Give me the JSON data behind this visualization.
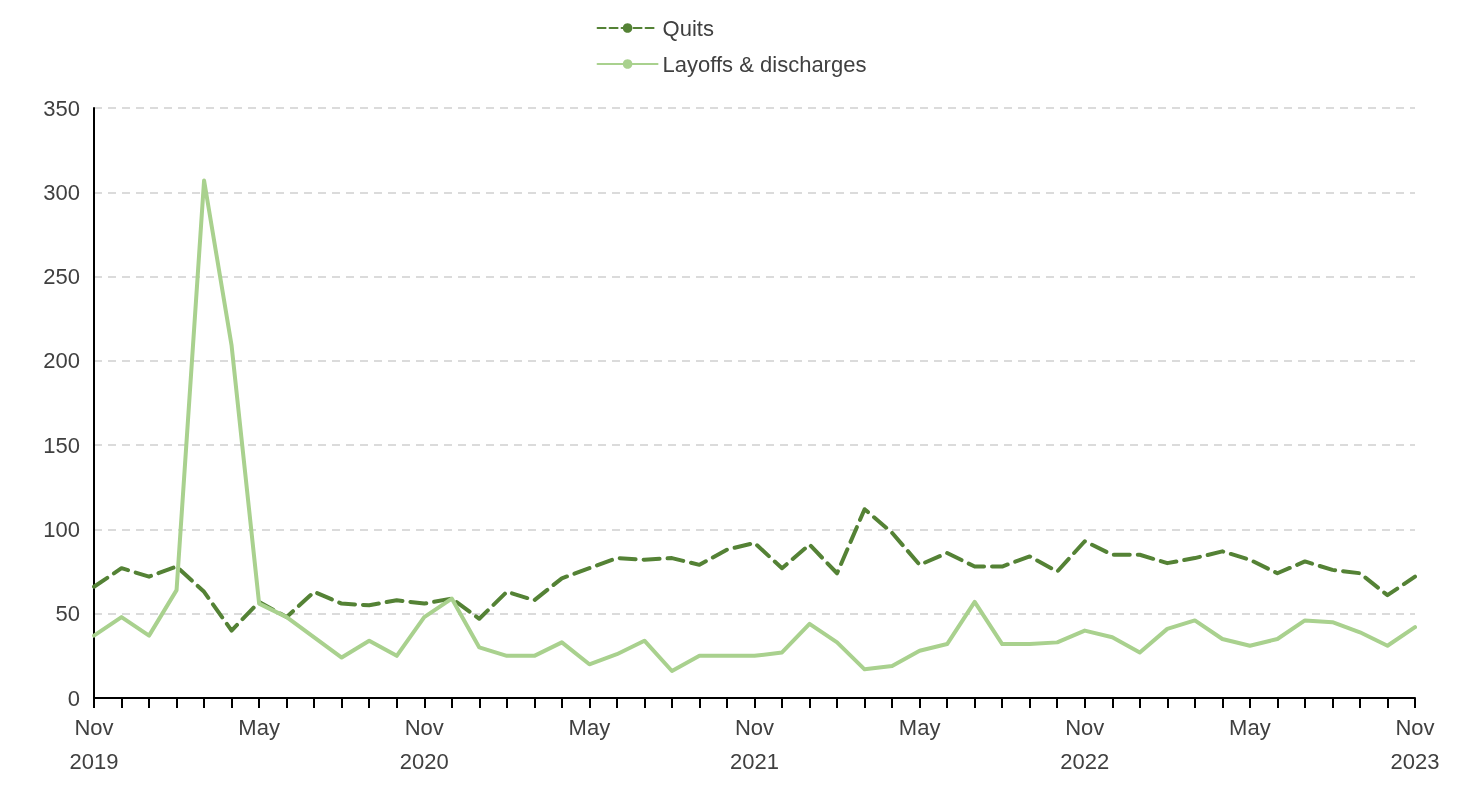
{
  "chart_data": {
    "type": "line",
    "categories": [
      "Nov\n2019",
      null,
      null,
      null,
      null,
      null,
      "May",
      null,
      null,
      null,
      null,
      null,
      "Nov\n2020",
      null,
      null,
      null,
      null,
      null,
      "May",
      null,
      null,
      null,
      null,
      null,
      "Nov\n2021",
      null,
      null,
      null,
      null,
      null,
      "May",
      null,
      null,
      null,
      null,
      null,
      "Nov\n2022",
      null,
      null,
      null,
      null,
      null,
      "May",
      null,
      null,
      null,
      null,
      null,
      "Nov\n2023"
    ],
    "series": [
      {
        "name": "Quits",
        "color": "#548235",
        "line_style": "dashed",
        "values": [
          66,
          77,
          72,
          78,
          63,
          40,
          57,
          48,
          63,
          56,
          55,
          58,
          56,
          59,
          47,
          63,
          58,
          71,
          77,
          83,
          82,
          83,
          79,
          88,
          92,
          77,
          91,
          74,
          112,
          98,
          79,
          86,
          78,
          78,
          84,
          75,
          93,
          85,
          85,
          80,
          83,
          87,
          82,
          74,
          81,
          76,
          74,
          61,
          72
        ]
      },
      {
        "name": "Layoffs & discharges",
        "color": "#a9d18e",
        "line_style": "solid",
        "values": [
          37,
          48,
          37,
          64,
          307,
          209,
          56,
          48,
          36,
          24,
          34,
          25,
          48,
          59,
          30,
          25,
          25,
          33,
          20,
          26,
          34,
          16,
          25,
          25,
          25,
          27,
          44,
          33,
          17,
          19,
          28,
          32,
          57,
          32,
          32,
          33,
          40,
          36,
          27,
          41,
          46,
          35,
          31,
          35,
          46,
          45,
          39,
          31,
          42
        ]
      }
    ],
    "ylim": [
      0,
      350
    ],
    "yticks": [
      0,
      50,
      100,
      150,
      200,
      250,
      300,
      350
    ],
    "grid": "y",
    "legend": "top",
    "marker": "none"
  }
}
